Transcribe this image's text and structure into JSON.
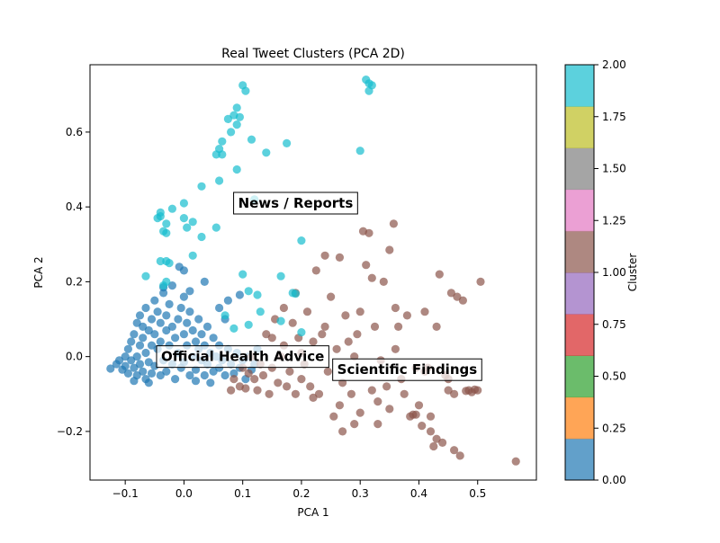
{
  "chart_data": {
    "type": "scatter",
    "title": "Real Tweet Clusters (PCA 2D)",
    "xlabel": "PCA 1",
    "ylabel": "PCA 2",
    "xlim": [
      -0.16,
      0.6
    ],
    "ylim": [
      -0.33,
      0.78
    ],
    "xticks": [
      -0.1,
      0.0,
      0.1,
      0.2,
      0.3,
      0.4,
      0.5
    ],
    "xtick_labels": [
      "−0.1",
      "0.0",
      "0.1",
      "0.2",
      "0.3",
      "0.4",
      "0.5"
    ],
    "yticks": [
      -0.2,
      0.0,
      0.2,
      0.4,
      0.6
    ],
    "ytick_labels": [
      "−0.2",
      "0.0",
      "0.2",
      "0.4",
      "0.6"
    ],
    "grid": false,
    "colormap": "tab10",
    "series": [
      {
        "cluster": 0,
        "color": "#1f77b4",
        "points": [
          [
            -0.125,
            -0.032
          ],
          [
            -0.115,
            -0.02
          ],
          [
            -0.11,
            -0.01
          ],
          [
            -0.105,
            -0.035
          ],
          [
            -0.1,
            -0.025
          ],
          [
            -0.1,
            0.0
          ],
          [
            -0.095,
            -0.045
          ],
          [
            -0.095,
            0.02
          ],
          [
            -0.09,
            -0.01
          ],
          [
            -0.09,
            0.04
          ],
          [
            -0.085,
            -0.03
          ],
          [
            -0.085,
            0.06
          ],
          [
            -0.08,
            0.0
          ],
          [
            -0.08,
            -0.05
          ],
          [
            -0.08,
            0.09
          ],
          [
            -0.075,
            0.03
          ],
          [
            -0.075,
            -0.02
          ],
          [
            -0.075,
            0.11
          ],
          [
            -0.07,
            0.05
          ],
          [
            -0.07,
            -0.04
          ],
          [
            -0.07,
            0.08
          ],
          [
            -0.065,
            0.01
          ],
          [
            -0.065,
            -0.06
          ],
          [
            -0.065,
            0.13
          ],
          [
            -0.06,
            0.07
          ],
          [
            -0.06,
            -0.015
          ],
          [
            -0.055,
            0.1
          ],
          [
            -0.055,
            0.03
          ],
          [
            -0.055,
            -0.045
          ],
          [
            -0.05,
            0.15
          ],
          [
            -0.05,
            0.06
          ],
          [
            -0.05,
            -0.025
          ],
          [
            -0.045,
            0.12
          ],
          [
            -0.045,
            0.02
          ],
          [
            -0.04,
            0.09
          ],
          [
            -0.04,
            -0.05
          ],
          [
            -0.04,
            0.04
          ],
          [
            -0.035,
            0.17
          ],
          [
            -0.035,
            -0.01
          ],
          [
            -0.03,
            0.07
          ],
          [
            -0.03,
            0.11
          ],
          [
            -0.03,
            -0.04
          ],
          [
            -0.025,
            0.03
          ],
          [
            -0.025,
            0.14
          ],
          [
            -0.02,
            0.08
          ],
          [
            -0.02,
            -0.02
          ],
          [
            -0.02,
            0.19
          ],
          [
            -0.015,
            0.05
          ],
          [
            -0.015,
            -0.06
          ],
          [
            -0.01,
            0.1
          ],
          [
            -0.01,
            0.01
          ],
          [
            -0.005,
            0.13
          ],
          [
            -0.005,
            -0.03
          ],
          [
            0.0,
            0.06
          ],
          [
            0.0,
            0.16
          ],
          [
            0.0,
            -0.015
          ],
          [
            0.005,
            0.09
          ],
          [
            0.005,
            0.03
          ],
          [
            0.01,
            -0.05
          ],
          [
            0.01,
            0.12
          ],
          [
            0.015,
            0.0
          ],
          [
            0.015,
            0.07
          ],
          [
            0.02,
            0.04
          ],
          [
            0.02,
            -0.035
          ],
          [
            0.025,
            0.1
          ],
          [
            0.025,
            0.02
          ],
          [
            0.03,
            -0.01
          ],
          [
            0.03,
            0.06
          ],
          [
            0.035,
            -0.05
          ],
          [
            0.035,
            0.03
          ],
          [
            0.04,
            0.08
          ],
          [
            0.04,
            -0.02
          ],
          [
            0.045,
            0.01
          ],
          [
            0.05,
            -0.04
          ],
          [
            0.05,
            0.05
          ],
          [
            0.055,
            0.0
          ],
          [
            0.06,
            -0.03
          ],
          [
            0.06,
            0.03
          ],
          [
            0.065,
            -0.01
          ],
          [
            0.07,
            -0.05
          ],
          [
            0.075,
            0.02
          ],
          [
            0.08,
            -0.02
          ],
          [
            0.085,
            -0.045
          ],
          [
            0.09,
            0.01
          ],
          [
            0.095,
            -0.03
          ],
          [
            0.1,
            -0.01
          ],
          [
            0.105,
            -0.06
          ],
          [
            0.11,
            0.0
          ],
          [
            0.115,
            -0.035
          ],
          [
            0.12,
            -0.02
          ],
          [
            0.125,
            0.02
          ],
          [
            -0.008,
            0.24
          ],
          [
            0.095,
            0.165
          ],
          [
            0.0,
            0.23
          ],
          [
            0.035,
            0.2
          ],
          [
            0.075,
            0.15
          ],
          [
            0.06,
            0.13
          ],
          [
            -0.085,
            -0.065
          ],
          [
            -0.06,
            -0.07
          ],
          [
            0.045,
            -0.07
          ],
          [
            0.02,
            -0.065
          ],
          [
            -0.035,
            0.185
          ],
          [
            0.01,
            0.175
          ],
          [
            0.07,
            0.1
          ]
        ]
      },
      {
        "cluster": 1,
        "color": "#8c564b",
        "points": [
          [
            0.565,
            -0.28
          ],
          [
            0.505,
            0.2
          ],
          [
            0.5,
            -0.09
          ],
          [
            0.495,
            -0.088
          ],
          [
            0.49,
            -0.095
          ],
          [
            0.485,
            -0.09
          ],
          [
            0.48,
            -0.092
          ],
          [
            0.475,
            0.15
          ],
          [
            0.47,
            -0.265
          ],
          [
            0.465,
            0.16
          ],
          [
            0.46,
            -0.25
          ],
          [
            0.455,
            0.17
          ],
          [
            0.45,
            -0.09
          ],
          [
            0.445,
            -0.05
          ],
          [
            0.44,
            -0.23
          ],
          [
            0.435,
            0.22
          ],
          [
            0.43,
            -0.22
          ],
          [
            0.425,
            -0.24
          ],
          [
            0.42,
            -0.2
          ],
          [
            0.415,
            -0.03
          ],
          [
            0.41,
            0.12
          ],
          [
            0.405,
            -0.185
          ],
          [
            0.4,
            -0.13
          ],
          [
            0.395,
            -0.155
          ],
          [
            0.39,
            -0.155
          ],
          [
            0.385,
            -0.16
          ],
          [
            0.38,
            0.11
          ],
          [
            0.375,
            -0.1
          ],
          [
            0.37,
            -0.06
          ],
          [
            0.365,
            0.08
          ],
          [
            0.36,
            0.13
          ],
          [
            0.357,
            0.355
          ],
          [
            0.35,
            0.285
          ],
          [
            0.345,
            -0.08
          ],
          [
            0.34,
            0.2
          ],
          [
            0.335,
            -0.01
          ],
          [
            0.33,
            -0.12
          ],
          [
            0.325,
            0.08
          ],
          [
            0.32,
            0.21
          ],
          [
            0.315,
            0.33
          ],
          [
            0.31,
            0.245
          ],
          [
            0.305,
            0.335
          ],
          [
            0.3,
            -0.15
          ],
          [
            0.295,
            0.06
          ],
          [
            0.29,
            -0.18
          ],
          [
            0.285,
            -0.1
          ],
          [
            0.28,
            0.04
          ],
          [
            0.275,
            0.11
          ],
          [
            0.27,
            -0.07
          ],
          [
            0.265,
            -0.13
          ],
          [
            0.26,
            0.02
          ],
          [
            0.255,
            -0.16
          ],
          [
            0.25,
            0.16
          ],
          [
            0.245,
            -0.04
          ],
          [
            0.24,
            0.27
          ],
          [
            0.235,
            0.06
          ],
          [
            0.23,
            -0.1
          ],
          [
            0.225,
            0.23
          ],
          [
            0.22,
            0.04
          ],
          [
            0.215,
            -0.08
          ],
          [
            0.21,
            0.12
          ],
          [
            0.205,
            -0.02
          ],
          [
            0.2,
            -0.06
          ],
          [
            0.195,
            0.05
          ],
          [
            0.19,
            -0.1
          ],
          [
            0.185,
            0.09
          ],
          [
            0.18,
            -0.04
          ],
          [
            0.175,
            -0.08
          ],
          [
            0.17,
            0.13
          ],
          [
            0.165,
            0.0
          ],
          [
            0.16,
            -0.07
          ],
          [
            0.155,
            0.1
          ],
          [
            0.15,
            -0.03
          ],
          [
            0.145,
            -0.1
          ],
          [
            0.14,
            0.06
          ],
          [
            0.135,
            -0.05
          ],
          [
            0.13,
            -0.02
          ],
          [
            0.125,
            -0.09
          ],
          [
            0.12,
            -0.06
          ],
          [
            0.115,
            0.0
          ],
          [
            0.11,
            -0.045
          ],
          [
            0.105,
            -0.085
          ],
          [
            0.1,
            -0.03
          ],
          [
            0.095,
            -0.08
          ],
          [
            0.085,
            -0.06
          ],
          [
            0.08,
            -0.09
          ],
          [
            0.19,
            0.17
          ],
          [
            0.265,
            0.265
          ],
          [
            0.41,
            -0.04
          ],
          [
            0.45,
            -0.06
          ],
          [
            0.46,
            -0.1
          ],
          [
            0.35,
            -0.14
          ],
          [
            0.32,
            -0.09
          ],
          [
            0.27,
            -0.2
          ],
          [
            0.22,
            -0.11
          ],
          [
            0.395,
            -0.03
          ],
          [
            0.42,
            -0.16
          ],
          [
            0.3,
            0.12
          ],
          [
            0.24,
            0.08
          ],
          [
            0.17,
            0.03
          ],
          [
            0.33,
            -0.18
          ],
          [
            0.36,
            0.02
          ],
          [
            0.43,
            0.08
          ],
          [
            0.29,
            0.0
          ],
          [
            0.2,
            0.01
          ],
          [
            0.15,
            0.05
          ]
        ]
      },
      {
        "cluster": 2,
        "color": "#17becf",
        "points": [
          [
            0.1,
            0.725
          ],
          [
            0.105,
            0.71
          ],
          [
            0.095,
            0.64
          ],
          [
            0.09,
            0.665
          ],
          [
            0.085,
            0.645
          ],
          [
            0.09,
            0.62
          ],
          [
            0.075,
            0.635
          ],
          [
            0.08,
            0.6
          ],
          [
            0.065,
            0.575
          ],
          [
            0.06,
            0.555
          ],
          [
            0.055,
            0.54
          ],
          [
            0.065,
            0.54
          ],
          [
            0.115,
            0.58
          ],
          [
            0.175,
            0.57
          ],
          [
            0.14,
            0.545
          ],
          [
            0.09,
            0.5
          ],
          [
            0.3,
            0.55
          ],
          [
            0.31,
            0.74
          ],
          [
            0.315,
            0.73
          ],
          [
            0.32,
            0.725
          ],
          [
            0.315,
            0.71
          ],
          [
            0.03,
            0.455
          ],
          [
            0.06,
            0.47
          ],
          [
            0.0,
            0.41
          ],
          [
            0.12,
            0.42
          ],
          [
            -0.02,
            0.395
          ],
          [
            -0.04,
            0.385
          ],
          [
            -0.04,
            0.375
          ],
          [
            -0.045,
            0.37
          ],
          [
            0.0,
            0.37
          ],
          [
            0.015,
            0.36
          ],
          [
            -0.03,
            0.355
          ],
          [
            0.005,
            0.345
          ],
          [
            0.055,
            0.345
          ],
          [
            -0.035,
            0.335
          ],
          [
            -0.03,
            0.33
          ],
          [
            0.03,
            0.32
          ],
          [
            0.2,
            0.31
          ],
          [
            0.015,
            0.27
          ],
          [
            -0.03,
            0.255
          ],
          [
            -0.025,
            0.25
          ],
          [
            -0.04,
            0.255
          ],
          [
            -0.065,
            0.215
          ],
          [
            0.1,
            0.22
          ],
          [
            0.165,
            0.215
          ],
          [
            -0.03,
            0.2
          ],
          [
            -0.035,
            0.19
          ],
          [
            0.11,
            0.175
          ],
          [
            0.125,
            0.165
          ],
          [
            0.185,
            0.17
          ],
          [
            0.19,
            0.168
          ],
          [
            0.13,
            0.12
          ],
          [
            0.11,
            0.085
          ],
          [
            0.07,
            0.11
          ],
          [
            0.165,
            0.095
          ],
          [
            0.2,
            0.065
          ],
          [
            0.085,
            0.075
          ]
        ]
      }
    ],
    "annotations": [
      {
        "text": "News / Reports",
        "x": 0.19,
        "y": 0.41
      },
      {
        "text": "Official Health Advice",
        "x": 0.1,
        "y": 0.0
      },
      {
        "text": "Scientific Findings",
        "x": 0.38,
        "y": -0.035
      }
    ],
    "colorbar": {
      "label": "Cluster",
      "range": [
        0,
        2
      ],
      "ticks": [
        0.0,
        0.25,
        0.5,
        0.75,
        1.0,
        1.25,
        1.5,
        1.75,
        2.0
      ],
      "tick_labels": [
        "0.00",
        "0.25",
        "0.50",
        "0.75",
        "1.00",
        "1.25",
        "1.50",
        "1.75",
        "2.00"
      ],
      "colors": [
        "#1f77b4",
        "#ff7f0e",
        "#2ca02c",
        "#d62728",
        "#9467bd",
        "#8c564b",
        "#e377c2",
        "#7f7f7f",
        "#bcbd22",
        "#17becf"
      ]
    }
  }
}
